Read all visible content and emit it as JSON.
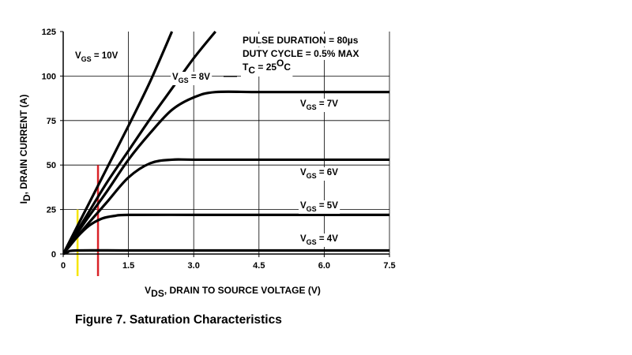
{
  "figure_caption": "Figure 7. Saturation Characteristics",
  "chart_data": {
    "type": "line",
    "xlabel": {
      "prefix": "V",
      "sub": "DS",
      "rest": ", DRAIN TO SOURCE VOLTAGE (V)"
    },
    "ylabel": {
      "prefix": "I",
      "sub": "D",
      "rest": ", DRAIN CURRENT (A)"
    },
    "xlim": [
      0,
      7.5
    ],
    "ylim": [
      0,
      125
    ],
    "x_ticks": [
      0,
      1.5,
      3.0,
      4.5,
      6.0,
      7.5
    ],
    "x_tick_labels": [
      "0",
      "1.5",
      "3.0",
      "4.5",
      "6.0",
      "7.5"
    ],
    "y_ticks": [
      0,
      25,
      50,
      75,
      100,
      125
    ],
    "y_tick_labels": [
      "0",
      "25",
      "50",
      "75",
      "100",
      "125"
    ],
    "grid": "partial",
    "notes": [
      "PULSE DURATION = 80µs",
      "DUTY CYCLE = 0.5% MAX"
    ],
    "tc_note": {
      "prefix": "T",
      "sub": "C",
      "value": " = 25",
      "sup": "O",
      "unit": "C"
    },
    "series": [
      {
        "name": "VGS = 10V",
        "label": {
          "prefix": "V",
          "sub": "GS",
          "rest": " = 10V"
        },
        "x": [
          0,
          0.5,
          1.0,
          1.5,
          2.0,
          2.5
        ],
        "y": [
          0,
          24,
          48,
          72,
          97,
          125
        ]
      },
      {
        "name": "VGS = 8V",
        "label": {
          "prefix": "V",
          "sub": "GS",
          "rest": " = 8V"
        },
        "x": [
          0,
          0.5,
          1.0,
          1.5,
          2.0,
          2.5,
          3.0,
          3.5
        ],
        "y": [
          0,
          20,
          40,
          58,
          76,
          93,
          110,
          125
        ]
      },
      {
        "name": "VGS = 7V",
        "label": {
          "prefix": "V",
          "sub": "GS",
          "rest": " = 7V"
        },
        "x": [
          0,
          0.5,
          1.0,
          1.5,
          2.0,
          2.5,
          3.0,
          3.5,
          4.5,
          6.0,
          7.5
        ],
        "y": [
          0,
          18,
          35,
          53,
          68,
          81,
          88,
          91,
          91,
          91,
          91
        ]
      },
      {
        "name": "VGS = 6V",
        "label": {
          "prefix": "V",
          "sub": "GS",
          "rest": " = 6V"
        },
        "x": [
          0,
          0.5,
          1.0,
          1.5,
          2.0,
          2.5,
          3.0,
          4.5,
          6.0,
          7.5
        ],
        "y": [
          0,
          15,
          29,
          43,
          51,
          53,
          53,
          53,
          53,
          53
        ]
      },
      {
        "name": "VGS = 5V",
        "label": {
          "prefix": "V",
          "sub": "GS",
          "rest": " = 5V"
        },
        "x": [
          0,
          0.3,
          0.6,
          0.9,
          1.2,
          1.5,
          3.0,
          4.5,
          6.0,
          7.5
        ],
        "y": [
          0,
          9,
          16,
          20,
          21.5,
          22,
          22,
          22,
          22,
          22
        ]
      },
      {
        "name": "VGS = 4V",
        "label": {
          "prefix": "V",
          "sub": "GS",
          "rest": " = 4V"
        },
        "x": [
          0,
          0.1,
          0.3,
          1.5,
          3.0,
          4.5,
          6.0,
          7.5
        ],
        "y": [
          0,
          1,
          2,
          2,
          2,
          2,
          2,
          2
        ]
      }
    ],
    "markers": [
      {
        "x": 0.33,
        "y_top": 25,
        "color": "#f7e600"
      },
      {
        "x": 0.8,
        "y_top": 50,
        "color": "#d92228"
      }
    ]
  }
}
